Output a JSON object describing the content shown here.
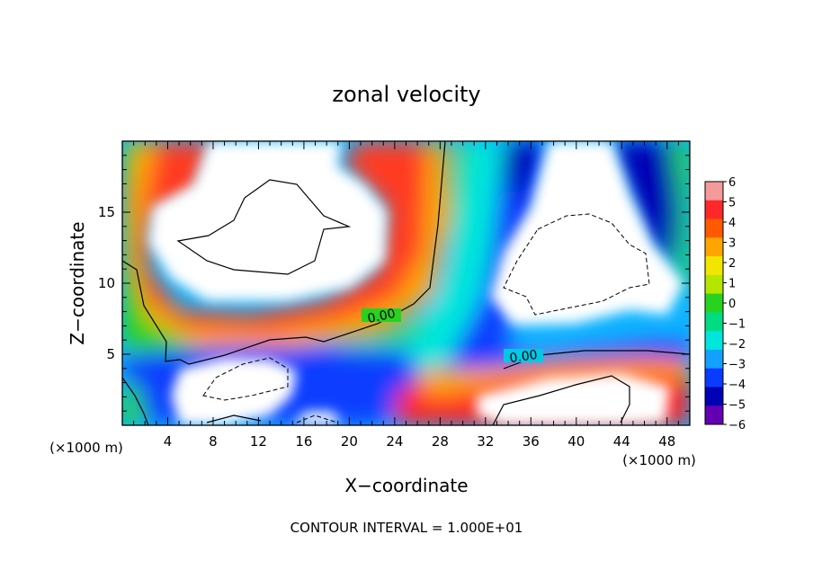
{
  "chart_data": {
    "type": "heatmap",
    "title": "zonal velocity",
    "xlabel": "X−coordinate",
    "ylabel": "Z−coordinate",
    "x_unit_label": "(×1000 m)",
    "z_unit_label": "(×1000 m)",
    "footer": "CONTOUR INTERVAL = 1.000E+01",
    "xlim": [
      0,
      50
    ],
    "ylim": [
      0,
      20
    ],
    "x_ticks": [
      "4",
      "8",
      "12",
      "16",
      "20",
      "24",
      "28",
      "32",
      "36",
      "40",
      "44",
      "48"
    ],
    "y_ticks": [
      "5",
      "10",
      "15"
    ],
    "colorbar": {
      "labels": [
        "6",
        "5",
        "4",
        "3",
        "2",
        "1",
        "0",
        "−1",
        "−2",
        "−3",
        "−4",
        "−5",
        "−6"
      ],
      "range": [
        -6,
        6
      ],
      "colors": [
        "#f59a9a",
        "#ff2828",
        "#ff5a00",
        "#ffa500",
        "#f2e600",
        "#b4e600",
        "#28d21e",
        "#00dc82",
        "#00e6dc",
        "#14a0ff",
        "#0a3cff",
        "#0000b4",
        "#6400b4"
      ]
    },
    "contour_labels": [
      "0.00",
      "0.00"
    ],
    "grid": false
  }
}
